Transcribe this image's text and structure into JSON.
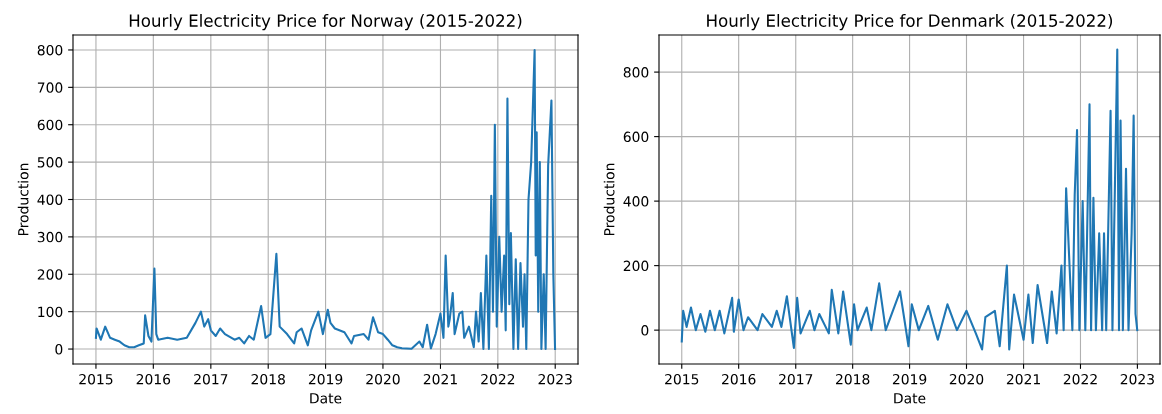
{
  "chart_data": [
    {
      "type": "line",
      "title": "Hourly Electricity Price for Norway (2015-2022)",
      "xlabel": "Date",
      "ylabel": "Production",
      "grid": true,
      "xlim": [
        "2014-08-08",
        "2023-05-26"
      ],
      "ylim": [
        -40,
        840
      ],
      "xticks": [
        {
          "value": "2015",
          "label": "2015"
        },
        {
          "value": "2016",
          "label": "2016"
        },
        {
          "value": "2017",
          "label": "2017"
        },
        {
          "value": "2018",
          "label": "2018"
        },
        {
          "value": "2019",
          "label": "2019"
        },
        {
          "value": "2020",
          "label": "2020"
        },
        {
          "value": "2021",
          "label": "2021"
        },
        {
          "value": "2022",
          "label": "2022"
        },
        {
          "value": "2023",
          "label": "2023"
        }
      ],
      "yticks": [
        0,
        100,
        200,
        300,
        400,
        500,
        600,
        700,
        800
      ],
      "series": [
        {
          "color": "#1f77b4",
          "x": [
            "2015-01-01",
            "2015-01-05",
            "2015-02-01",
            "2015-03-01",
            "2015-04-01",
            "2015-05-01",
            "2015-06-01",
            "2015-07-01",
            "2015-08-01",
            "2015-09-01",
            "2015-10-01",
            "2015-11-01",
            "2015-11-10",
            "2015-12-01",
            "2015-12-20",
            "2016-01-08",
            "2016-01-20",
            "2016-02-01",
            "2016-04-01",
            "2016-06-01",
            "2016-08-01",
            "2016-09-25",
            "2016-10-30",
            "2016-11-20",
            "2016-12-15",
            "2017-01-01",
            "2017-02-01",
            "2017-03-01",
            "2017-04-01",
            "2017-06-01",
            "2017-07-01",
            "2017-08-01",
            "2017-09-01",
            "2017-10-01",
            "2017-11-17",
            "2017-12-15",
            "2018-01-15",
            "2018-02-22",
            "2018-03-15",
            "2018-05-01",
            "2018-06-15",
            "2018-07-01",
            "2018-08-01",
            "2018-09-10",
            "2018-10-01",
            "2018-11-16",
            "2018-12-15",
            "2019-01-15",
            "2019-02-01",
            "2019-03-01",
            "2019-05-01",
            "2019-06-15",
            "2019-07-01",
            "2019-09-01",
            "2019-10-01",
            "2019-10-30",
            "2019-12-01",
            "2020-01-01",
            "2020-02-01",
            "2020-03-01",
            "2020-04-01",
            "2020-05-01",
            "2020-07-01",
            "2020-08-20",
            "2020-09-10",
            "2020-10-08",
            "2020-11-01",
            "2020-12-01",
            "2021-01-01",
            "2021-01-20",
            "2021-02-03",
            "2021-02-20",
            "2021-03-01",
            "2021-03-20",
            "2021-04-01",
            "2021-05-01",
            "2021-05-20",
            "2021-06-01",
            "2021-07-01",
            "2021-08-01",
            "2021-08-15",
            "2021-09-01",
            "2021-09-15",
            "2021-10-01",
            "2021-10-20",
            "2021-11-05",
            "2021-11-20",
            "2021-12-01",
            "2021-12-13",
            "2021-12-25",
            "2022-01-10",
            "2022-01-25",
            "2022-02-10",
            "2022-02-20",
            "2022-03-03",
            "2022-03-15",
            "2022-03-25",
            "2022-04-10",
            "2022-04-25",
            "2022-05-10",
            "2022-05-25",
            "2022-06-10",
            "2022-06-20",
            "2022-07-01",
            "2022-07-15",
            "2022-08-01",
            "2022-08-23",
            "2022-08-30",
            "2022-09-05",
            "2022-09-15",
            "2022-09-25",
            "2022-10-05",
            "2022-10-20",
            "2022-11-01",
            "2022-11-17",
            "2022-12-08",
            "2022-12-20",
            "2022-12-31"
          ],
          "values": [
            30,
            55,
            25,
            60,
            30,
            25,
            20,
            10,
            5,
            5,
            10,
            15,
            90,
            35,
            20,
            215,
            40,
            25,
            30,
            25,
            30,
            70,
            100,
            60,
            80,
            50,
            35,
            55,
            40,
            25,
            30,
            15,
            35,
            25,
            115,
            30,
            40,
            255,
            60,
            40,
            15,
            45,
            55,
            10,
            50,
            100,
            40,
            105,
            70,
            55,
            45,
            15,
            35,
            40,
            25,
            85,
            45,
            40,
            25,
            10,
            5,
            2,
            1,
            20,
            5,
            65,
            2,
            40,
            95,
            30,
            250,
            60,
            80,
            150,
            40,
            95,
            100,
            30,
            60,
            5,
            100,
            20,
            150,
            0,
            250,
            0,
            410,
            100,
            600,
            60,
            300,
            100,
            250,
            50,
            670,
            120,
            310,
            0,
            240,
            0,
            230,
            60,
            200,
            0,
            400,
            500,
            800,
            250,
            580,
            100,
            500,
            0,
            200,
            0,
            490,
            665,
            200,
            0
          ]
        }
      ]
    },
    {
      "type": "line",
      "title": "Hourly Electricity Price for Denmark (2015-2022)",
      "xlabel": "Date",
      "ylabel": "Production",
      "grid": true,
      "xlim": [
        "2014-08-08",
        "2023-05-26"
      ],
      "ylim": [
        -105,
        915
      ],
      "xticks": [
        {
          "value": "2015",
          "label": "2015"
        },
        {
          "value": "2016",
          "label": "2016"
        },
        {
          "value": "2017",
          "label": "2017"
        },
        {
          "value": "2018",
          "label": "2018"
        },
        {
          "value": "2019",
          "label": "2019"
        },
        {
          "value": "2020",
          "label": "2020"
        },
        {
          "value": "2021",
          "label": "2021"
        },
        {
          "value": "2022",
          "label": "2022"
        },
        {
          "value": "2023",
          "label": "2023"
        }
      ],
      "yticks": [
        0,
        200,
        400,
        600,
        800
      ],
      "series": [
        {
          "color": "#1f77b4",
          "x": [
            "2015-01-01",
            "2015-01-10",
            "2015-02-01",
            "2015-03-01",
            "2015-04-01",
            "2015-05-01",
            "2015-06-01",
            "2015-07-01",
            "2015-08-01",
            "2015-09-01",
            "2015-10-01",
            "2015-11-20",
            "2015-12-01",
            "2016-01-01",
            "2016-02-01",
            "2016-03-01",
            "2016-05-01",
            "2016-06-01",
            "2016-08-01",
            "2016-09-01",
            "2016-10-01",
            "2016-11-05",
            "2016-12-20",
            "2017-01-10",
            "2017-02-01",
            "2017-04-01",
            "2017-05-01",
            "2017-06-01",
            "2017-08-01",
            "2017-08-20",
            "2017-10-01",
            "2017-11-01",
            "2017-12-20",
            "2018-01-10",
            "2018-02-01",
            "2018-04-01",
            "2018-05-01",
            "2018-06-20",
            "2018-08-01",
            "2018-11-01",
            "2018-12-25",
            "2019-01-15",
            "2019-03-01",
            "2019-05-01",
            "2019-07-01",
            "2019-09-01",
            "2019-11-01",
            "2020-01-01",
            "2020-03-01",
            "2020-04-10",
            "2020-05-01",
            "2020-07-01",
            "2020-08-01",
            "2020-09-16",
            "2020-10-01",
            "2020-11-01",
            "2021-01-01",
            "2021-02-01",
            "2021-03-01",
            "2021-04-01",
            "2021-06-01",
            "2021-07-01",
            "2021-08-01",
            "2021-09-01",
            "2021-09-15",
            "2021-10-01",
            "2021-11-10",
            "2021-11-25",
            "2021-12-10",
            "2021-12-25",
            "2022-01-15",
            "2022-02-01",
            "2022-02-28",
            "2022-03-10",
            "2022-03-25",
            "2022-04-10",
            "2022-05-01",
            "2022-05-20",
            "2022-06-01",
            "2022-06-15",
            "2022-07-13",
            "2022-07-25",
            "2022-08-25",
            "2022-09-05",
            "2022-09-15",
            "2022-09-30",
            "2022-10-20",
            "2022-11-05",
            "2022-11-25",
            "2022-12-08",
            "2022-12-20",
            "2022-12-31"
          ],
          "values": [
            -35,
            60,
            10,
            70,
            0,
            50,
            -5,
            60,
            0,
            60,
            -10,
            100,
            -5,
            95,
            0,
            40,
            0,
            50,
            10,
            60,
            10,
            105,
            -55,
            100,
            -10,
            60,
            0,
            50,
            -10,
            125,
            -10,
            120,
            -45,
            80,
            0,
            70,
            0,
            145,
            0,
            120,
            -50,
            80,
            0,
            75,
            -30,
            80,
            0,
            60,
            -10,
            -60,
            40,
            60,
            -50,
            200,
            -60,
            110,
            -30,
            110,
            -40,
            140,
            -40,
            120,
            -10,
            200,
            0,
            440,
            0,
            420,
            620,
            0,
            400,
            0,
            700,
            0,
            410,
            0,
            300,
            0,
            300,
            0,
            680,
            0,
            870,
            0,
            650,
            0,
            500,
            0,
            300,
            665,
            50,
            0
          ]
        }
      ]
    }
  ]
}
